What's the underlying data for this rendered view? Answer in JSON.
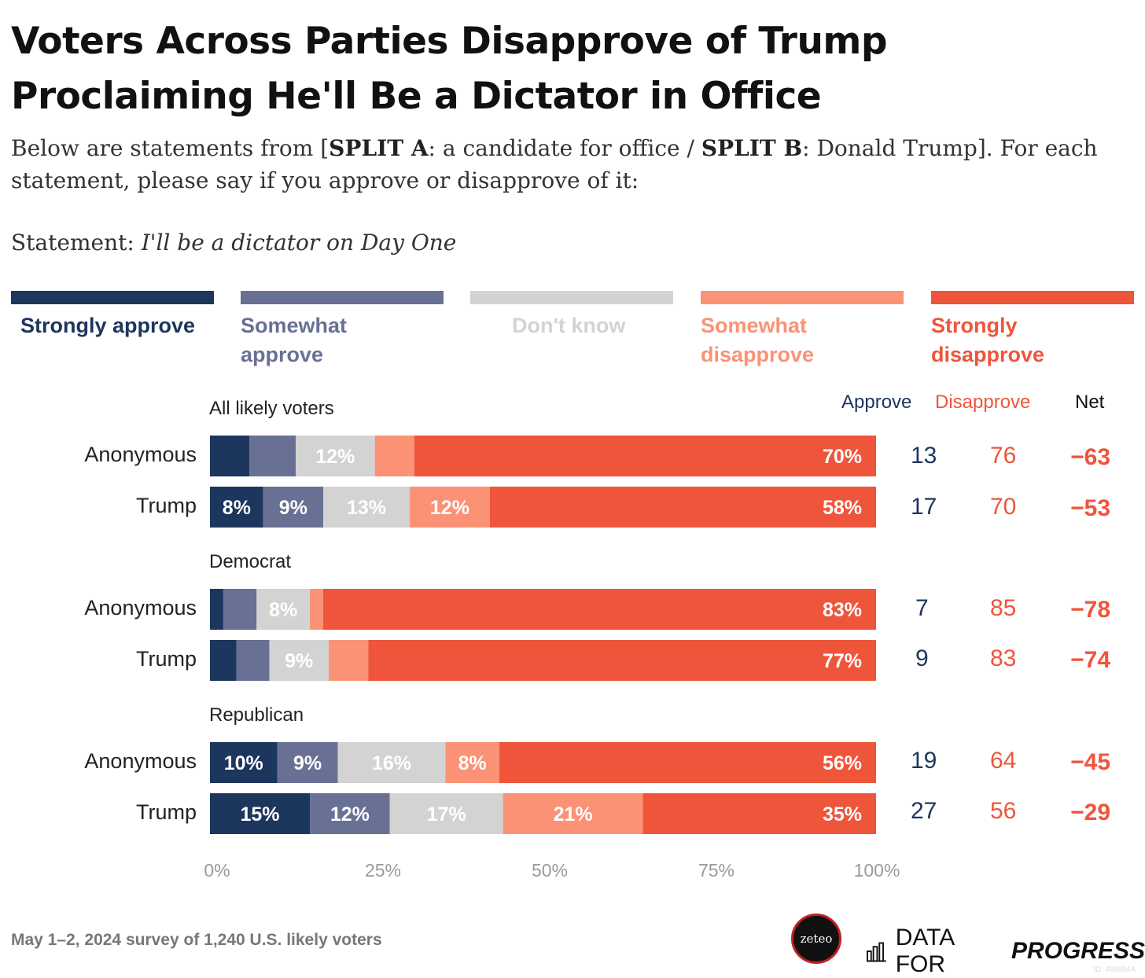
{
  "title_line1": "Voters Across Parties Disapprove of Trump",
  "title_line2": "Proclaiming He'll Be a Dictator in Office",
  "subtitle": {
    "pre": "Below are statements from [",
    "split_a": "SPLIT A",
    "mid1": ": a candidate for office / ",
    "split_b": "SPLIT B",
    "mid2": ": Donald Trump]. For each statement, please say if you approve or disapprove of it:"
  },
  "statement": {
    "label": "Statement: ",
    "text": "I'll be a dictator on Day One"
  },
  "legend": [
    {
      "label": "Strongly approve",
      "color": "#1d365e"
    },
    {
      "label": "Somewhat approve",
      "color": "#687194"
    },
    {
      "label": "Don't know",
      "color": "#d3d3d3"
    },
    {
      "label": "Somewhat disapprove",
      "color": "#fb9276"
    },
    {
      "label": "Strongly disapprove",
      "color": "#ef553b"
    }
  ],
  "columns": {
    "approve": "Approve",
    "disapprove": "Disapprove",
    "net": "Net"
  },
  "chart_data": {
    "type": "bar",
    "orientation": "horizontal-stacked",
    "xlim": [
      0,
      100
    ],
    "x_ticks": [
      "0%",
      "25%",
      "50%",
      "75%",
      "100%"
    ],
    "series_names": [
      "Strongly approve",
      "Somewhat approve",
      "Don't know",
      "Somewhat disapprove",
      "Strongly disapprove"
    ],
    "groups": [
      {
        "name": "All likely voters",
        "rows": [
          {
            "label": "Anonymous",
            "values": [
              6,
              7,
              12,
              6,
              70
            ],
            "labels": [
              "",
              "",
              "12%",
              "",
              "70%"
            ],
            "approve": "13",
            "disapprove": "76",
            "net": "−63"
          },
          {
            "label": "Trump",
            "values": [
              8,
              9,
              13,
              12,
              58
            ],
            "labels": [
              "8%",
              "9%",
              "13%",
              "12%",
              "58%"
            ],
            "approve": "17",
            "disapprove": "70",
            "net": "−53"
          }
        ]
      },
      {
        "name": "Democrat",
        "rows": [
          {
            "label": "Anonymous",
            "values": [
              2,
              5,
              8,
              2,
              83
            ],
            "labels": [
              "",
              "",
              "8%",
              "",
              "83%"
            ],
            "approve": "7",
            "disapprove": "85",
            "net": "−78"
          },
          {
            "label": "Trump",
            "values": [
              4,
              5,
              9,
              6,
              77
            ],
            "labels": [
              "",
              "",
              "9%",
              "",
              "77%"
            ],
            "approve": "9",
            "disapprove": "83",
            "net": "−74"
          }
        ]
      },
      {
        "name": "Republican",
        "rows": [
          {
            "label": "Anonymous",
            "values": [
              10,
              9,
              16,
              8,
              56
            ],
            "labels": [
              "10%",
              "9%",
              "16%",
              "8%",
              "56%"
            ],
            "approve": "19",
            "disapprove": "64",
            "net": "−45"
          },
          {
            "label": "Trump",
            "values": [
              15,
              12,
              17,
              21,
              35
            ],
            "labels": [
              "15%",
              "12%",
              "17%",
              "21%",
              "35%"
            ],
            "approve": "27",
            "disapprove": "56",
            "net": "−29"
          }
        ]
      }
    ]
  },
  "footer": "May 1–2, 2024 survey of 1,240 U.S. likely voters",
  "logos": {
    "zeteo": "zeteo",
    "dfp_regular": "DATA FOR",
    "dfp_emphasis": "PROGRESS"
  },
  "chart_id": "ID: 4W694A"
}
